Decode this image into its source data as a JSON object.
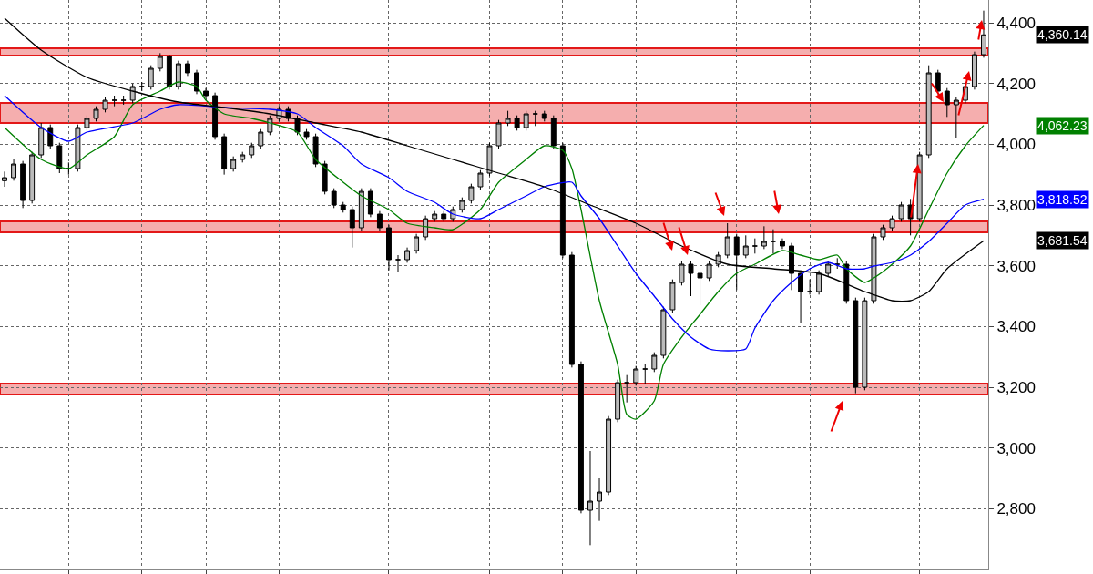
{
  "chart_data": {
    "type": "candlestick",
    "categories": [
      null,
      null,
      null,
      null,
      null,
      null,
      null,
      null,
      null,
      null,
      null,
      null,
      null,
      null,
      null,
      null,
      null,
      null,
      null,
      null,
      null,
      null,
      null,
      null,
      null,
      null,
      null,
      null,
      null,
      null,
      null,
      null,
      null,
      null,
      null,
      null,
      null,
      null,
      null,
      null,
      null,
      null,
      null,
      null,
      null,
      null,
      null,
      null,
      null,
      null,
      null,
      null,
      null,
      null,
      null,
      null,
      null,
      null,
      null,
      null,
      null,
      null,
      null,
      null,
      null,
      null,
      null,
      null,
      null,
      null,
      null,
      null,
      null,
      null,
      null,
      null,
      null,
      null,
      null,
      null,
      null,
      null,
      null,
      null,
      null,
      null,
      null,
      null,
      null,
      null,
      null,
      null,
      null,
      null,
      null,
      null,
      null,
      null,
      null,
      null,
      null,
      null,
      null,
      null,
      null,
      null,
      null,
      null
    ],
    "ohlc": [
      [
        3880,
        3910,
        3860,
        3890
      ],
      [
        3890,
        3950,
        3880,
        3935
      ],
      [
        3935,
        3945,
        3790,
        3815
      ],
      [
        3815,
        3975,
        3805,
        3965
      ],
      [
        3965,
        4070,
        3955,
        4055
      ],
      [
        4055,
        4065,
        3985,
        3995
      ],
      [
        3995,
        4005,
        3905,
        3920
      ],
      [
        3920,
        3940,
        3900,
        3920
      ],
      [
        3920,
        4065,
        3910,
        4055
      ],
      [
        4055,
        4095,
        4045,
        4085
      ],
      [
        4085,
        4125,
        4075,
        4115
      ],
      [
        4115,
        4155,
        4105,
        4145
      ],
      [
        4145,
        4160,
        4125,
        4145
      ],
      [
        4145,
        4160,
        4130,
        4145
      ],
      [
        4145,
        4200,
        4135,
        4190
      ],
      [
        4190,
        4205,
        4175,
        4190
      ],
      [
        4190,
        4260,
        4180,
        4250
      ],
      [
        4250,
        4300,
        4240,
        4289
      ],
      [
        4289,
        4295,
        4180,
        4190
      ],
      [
        4190,
        4275,
        4180,
        4265
      ],
      [
        4265,
        4275,
        4225,
        4235
      ],
      [
        4235,
        4245,
        4165,
        4175
      ],
      [
        4175,
        4185,
        4150,
        4160
      ],
      [
        4160,
        4170,
        4015,
        4025
      ],
      [
        4025,
        4035,
        3900,
        3920
      ],
      [
        3920,
        3960,
        3910,
        3950
      ],
      [
        3950,
        3975,
        3940,
        3965
      ],
      [
        3965,
        4005,
        3955,
        3995
      ],
      [
        3995,
        4050,
        3985,
        4040
      ],
      [
        4040,
        4095,
        4030,
        4085
      ],
      [
        4085,
        4125,
        4075,
        4115
      ],
      [
        4115,
        4125,
        4075,
        4085
      ],
      [
        4085,
        4095,
        4030,
        4040
      ],
      [
        4040,
        4050,
        4015,
        4025
      ],
      [
        4025,
        4035,
        3925,
        3935
      ],
      [
        3935,
        3945,
        3835,
        3845
      ],
      [
        3845,
        3855,
        3790,
        3800
      ],
      [
        3800,
        3810,
        3775,
        3785
      ],
      [
        3785,
        3795,
        3660,
        3725
      ],
      [
        3725,
        3855,
        3715,
        3845
      ],
      [
        3845,
        3855,
        3760,
        3770
      ],
      [
        3770,
        3780,
        3715,
        3725
      ],
      [
        3725,
        3735,
        3585,
        3620
      ],
      [
        3620,
        3635,
        3580,
        3620
      ],
      [
        3620,
        3660,
        3610,
        3650
      ],
      [
        3650,
        3705,
        3640,
        3695
      ],
      [
        3695,
        3765,
        3685,
        3755
      ],
      [
        3755,
        3780,
        3745,
        3770
      ],
      [
        3770,
        3780,
        3745,
        3755
      ],
      [
        3755,
        3795,
        3745,
        3785
      ],
      [
        3785,
        3825,
        3775,
        3815
      ],
      [
        3815,
        3870,
        3805,
        3860
      ],
      [
        3860,
        3915,
        3850,
        3905
      ],
      [
        3905,
        4005,
        3895,
        3995
      ],
      [
        3995,
        4080,
        3985,
        4070
      ],
      [
        4070,
        4110,
        4060,
        4085
      ],
      [
        4085,
        4095,
        4045,
        4055
      ],
      [
        4055,
        4110,
        4045,
        4100
      ],
      [
        4100,
        4110,
        4060,
        4100
      ],
      [
        4100,
        4110,
        4075,
        4085
      ],
      [
        4085,
        4095,
        3985,
        3995
      ],
      [
        3995,
        4005,
        3625,
        3635
      ],
      [
        3635,
        3645,
        3265,
        3275
      ],
      [
        3275,
        3285,
        2785,
        2795
      ],
      [
        2795,
        2990,
        2680,
        2825
      ],
      [
        2825,
        2900,
        2760,
        2855
      ],
      [
        2855,
        3105,
        2845,
        3095
      ],
      [
        3095,
        3225,
        3085,
        3215
      ],
      [
        3215,
        3240,
        3150,
        3215
      ],
      [
        3215,
        3270,
        3205,
        3260
      ],
      [
        3260,
        3275,
        3210,
        3260
      ],
      [
        3260,
        3315,
        3250,
        3305
      ],
      [
        3305,
        3465,
        3295,
        3455
      ],
      [
        3455,
        3555,
        3445,
        3545
      ],
      [
        3545,
        3615,
        3535,
        3605
      ],
      [
        3605,
        3615,
        3500,
        3575
      ],
      [
        3575,
        3585,
        3470,
        3560
      ],
      [
        3560,
        3615,
        3550,
        3605
      ],
      [
        3605,
        3645,
        3595,
        3635
      ],
      [
        3635,
        3740,
        3625,
        3695
      ],
      [
        3695,
        3705,
        3520,
        3635
      ],
      [
        3635,
        3700,
        3625,
        3665
      ],
      [
        3665,
        3690,
        3640,
        3665
      ],
      [
        3665,
        3730,
        3655,
        3680
      ],
      [
        3680,
        3720,
        3640,
        3680
      ],
      [
        3680,
        3690,
        3655,
        3665
      ],
      [
        3665,
        3675,
        3520,
        3575
      ],
      [
        3575,
        3585,
        3410,
        3515
      ],
      [
        3515,
        3555,
        3505,
        3515
      ],
      [
        3515,
        3585,
        3505,
        3575
      ],
      [
        3575,
        3615,
        3565,
        3605
      ],
      [
        3605,
        3625,
        3590,
        3605
      ],
      [
        3605,
        3615,
        3475,
        3485
      ],
      [
        3485,
        3495,
        3180,
        3200
      ],
      [
        3200,
        3495,
        3190,
        3485
      ],
      [
        3485,
        3705,
        3475,
        3695
      ],
      [
        3695,
        3735,
        3685,
        3725
      ],
      [
        3725,
        3765,
        3715,
        3755
      ],
      [
        3755,
        3810,
        3745,
        3800
      ],
      [
        3800,
        3820,
        3700,
        3755
      ],
      [
        3755,
        3975,
        3745,
        3965
      ],
      [
        3965,
        4260,
        3955,
        4235
      ],
      [
        4235,
        4245,
        4165,
        4175
      ],
      [
        4175,
        4185,
        4090,
        4130
      ],
      [
        4130,
        4155,
        4020,
        4145
      ],
      [
        4145,
        4200,
        4135,
        4190
      ],
      [
        4190,
        4305,
        4180,
        4295
      ],
      [
        4295,
        4440,
        4285,
        4360.14
      ]
    ],
    "color": "#000000",
    "series": [
      {
        "type": "line",
        "color": "#008000",
        "values": [
          4055,
          null,
          null,
          null,
          3950,
          null,
          null,
          3920,
          null,
          3965,
          null,
          null,
          4025,
          null,
          4130,
          null,
          null,
          4175,
          null,
          4205,
          null,
          4190,
          4145,
          null,
          4100,
          null,
          null,
          4085,
          null,
          4070,
          null,
          null,
          4040,
          null,
          3950,
          null,
          null,
          3875,
          null,
          3830,
          null,
          null,
          3785,
          null,
          3740,
          null,
          null,
          3725,
          null,
          3719,
          null,
          null,
          3785,
          null,
          3875,
          null,
          null,
          3950,
          null,
          3995,
          null,
          3980,
          3920,
          3785,
          null,
          3485,
          null,
          3275,
          3110,
          3095,
          null,
          3155,
          3275,
          null,
          3365,
          null,
          3440,
          null,
          3515,
          null,
          3575,
          null,
          3605,
          null,
          null,
          3650,
          null,
          3635,
          null,
          3620,
          null,
          3635,
          3590,
          null,
          3545,
          3560,
          null,
          3605,
          null,
          3665,
          null,
          3785,
          null,
          3905,
          null,
          3995,
          null,
          4062
        ]
      },
      {
        "type": "line",
        "color": "#0000ff",
        "values": [
          4160,
          null,
          null,
          null,
          4055,
          null,
          null,
          4010,
          null,
          4040,
          null,
          null,
          null,
          null,
          4070,
          null,
          null,
          4115,
          null,
          4130,
          null,
          null,
          null,
          null,
          4121,
          null,
          null,
          null,
          null,
          4115,
          null,
          null,
          4100,
          null,
          4055,
          null,
          null,
          3995,
          null,
          3935,
          null,
          null,
          3890,
          null,
          3845,
          null,
          null,
          3809,
          null,
          3770,
          null,
          null,
          3755,
          null,
          3785,
          null,
          null,
          3830,
          null,
          3860,
          null,
          null,
          3875,
          3830,
          null,
          3755,
          null,
          3665,
          null,
          3575,
          null,
          3500,
          null,
          3425,
          null,
          3365,
          null,
          3326,
          null,
          3320,
          null,
          3326,
          3395,
          null,
          3485,
          null,
          3545,
          null,
          3590,
          null,
          3611,
          null,
          3590,
          null,
          3590,
          3599,
          null,
          3611,
          null,
          3635,
          null,
          3680,
          null,
          3740,
          null,
          3800,
          null,
          3819
        ]
      },
      {
        "type": "line",
        "color": "#000000",
        "values": [
          4415,
          null,
          null,
          null,
          4310,
          null,
          null,
          null,
          null,
          4220,
          null,
          null,
          null,
          null,
          4175,
          null,
          null,
          null,
          null,
          4139,
          null,
          null,
          null,
          null,
          4121,
          null,
          null,
          null,
          null,
          4100,
          null,
          null,
          null,
          null,
          4070,
          null,
          null,
          null,
          null,
          4040,
          null,
          null,
          null,
          null,
          3995,
          null,
          null,
          null,
          null,
          3950,
          null,
          null,
          null,
          null,
          3905,
          null,
          null,
          null,
          null,
          3860,
          null,
          null,
          null,
          null,
          3800,
          null,
          null,
          null,
          null,
          3740,
          null,
          null,
          null,
          null,
          3665,
          null,
          null,
          null,
          null,
          3605,
          null,
          null,
          null,
          null,
          3590,
          null,
          null,
          null,
          null,
          3575,
          null,
          null,
          null,
          null,
          3515,
          null,
          null,
          3485,
          null,
          3485,
          null,
          3515,
          null,
          3590,
          null,
          null,
          null,
          3682
        ]
      }
    ],
    "ylim": [
      2600,
      4475
    ],
    "yticks": [
      {
        "value": 2800,
        "label": "2,800"
      },
      {
        "value": 3000,
        "label": "3,000"
      },
      {
        "value": 3200,
        "label": "3,200"
      },
      {
        "value": 3400,
        "label": "3,400"
      },
      {
        "value": 3600,
        "label": "3,600"
      },
      {
        "value": 3800,
        "label": "3,800"
      },
      {
        "value": 4000,
        "label": "4,000"
      },
      {
        "value": 4200,
        "label": "4,200"
      },
      {
        "value": 4400,
        "label": "4,400"
      }
    ],
    "bands": [
      {
        "axis": "y",
        "from": 4292,
        "to": 4316,
        "color": "#f4a6a6"
      },
      {
        "axis": "y",
        "from": 4070,
        "to": 4136,
        "color": "#f4a6a6"
      },
      {
        "axis": "y",
        "from": 3710,
        "to": 3746,
        "color": "#f4a6a6"
      },
      {
        "axis": "y",
        "from": 3176,
        "to": 3212,
        "color": "#f4a6a6"
      }
    ],
    "annotations": [
      "4,360.14",
      "4,062.23",
      "3,818.52",
      "3,681.54"
    ],
    "grid": true,
    "tick_labels": "y"
  }
}
